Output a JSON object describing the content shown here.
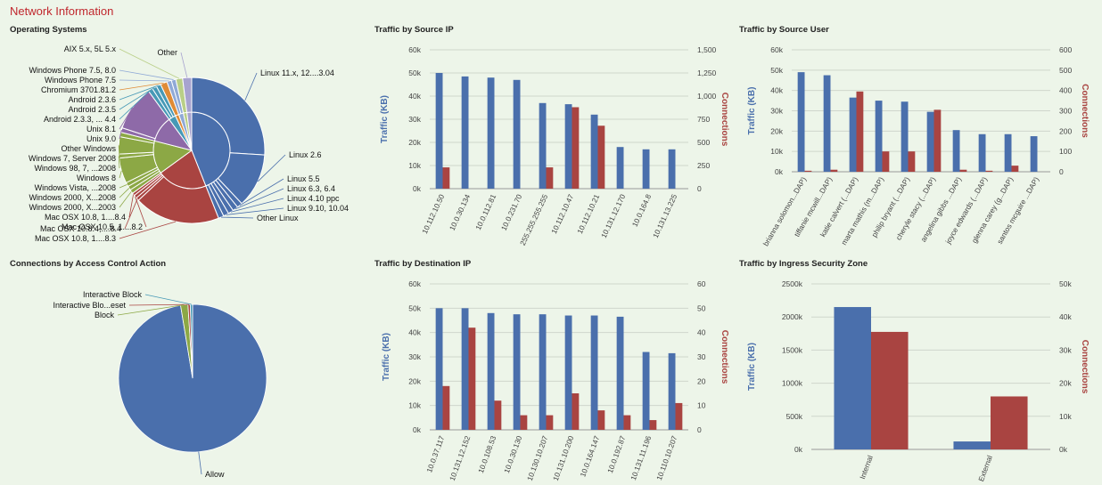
{
  "page": {
    "title": "Network Information"
  },
  "colors": {
    "blue": "#4a6fac",
    "red": "#a94441",
    "green": "#8ca845",
    "purple": "#8e6aa8",
    "teal": "#4799b6",
    "orange": "#df8b36",
    "lightblue": "#8fa9d6",
    "lightgreen": "#b9cf87",
    "grid": "#cfd6cc",
    "ylabel_left": "#4a6fac",
    "ylabel_right": "#a94441"
  },
  "chart_data": [
    {
      "id": "os",
      "type": "pie",
      "title": "Operating Systems",
      "inner_ring": [
        {
          "name": "Linux",
          "value": 44,
          "color": "#4a6fac"
        },
        {
          "name": "Mac OSX",
          "value": 21,
          "color": "#a94441"
        },
        {
          "name": "Windows",
          "value": 14,
          "color": "#8ca845"
        },
        {
          "name": "Unix",
          "value": 11,
          "color": "#8e6aa8"
        },
        {
          "name": "Android",
          "value": 3,
          "color": "#4799b6"
        },
        {
          "name": "Chromium",
          "value": 1.5,
          "color": "#df8b36"
        },
        {
          "name": "Windows Phone",
          "value": 2,
          "color": "#8fa9d6"
        },
        {
          "name": "AIX",
          "value": 1.5,
          "color": "#b9cf87"
        },
        {
          "name": "Other",
          "value": 2,
          "color": "#a7a3cf"
        }
      ],
      "outer_ring": [
        {
          "label": "Linux 11.x, 12....3.04",
          "value": 26,
          "color": "#4a6fac"
        },
        {
          "label": "Linux 2.6",
          "value": 12,
          "color": "#4a6fac"
        },
        {
          "label": "Linux 5.5",
          "value": 1.2,
          "color": "#4a6fac"
        },
        {
          "label": "Linux 6.3, 6.4",
          "value": 1.2,
          "color": "#4a6fac"
        },
        {
          "label": "Linux 4.10 ppc",
          "value": 1.2,
          "color": "#4a6fac"
        },
        {
          "label": "Linux 9.10, 10.04",
          "value": 1.2,
          "color": "#4a6fac"
        },
        {
          "label": "Other Linux",
          "value": 1.2,
          "color": "#4a6fac"
        },
        {
          "label": "Mac OSX 10.8, 1....8.3",
          "value": 19,
          "color": "#a94441"
        },
        {
          "label": "Mac OSX 10.8.4,....8.4",
          "value": 0.7,
          "color": "#a94441"
        },
        {
          "label": "Mac OSX 10.5, 1....8.2",
          "value": 0.7,
          "color": "#a94441"
        },
        {
          "label": "Mac OSX 10.8, 1....8.4",
          "value": 0.6,
          "color": "#a94441"
        },
        {
          "label": "Windows 2000, X...2003",
          "value": 0.9,
          "color": "#8ca845"
        },
        {
          "label": "Windows 2000, X...2008",
          "value": 0.9,
          "color": "#8ca845"
        },
        {
          "label": "Windows Vista, ...2008",
          "value": 0.9,
          "color": "#8ca845"
        },
        {
          "label": "Windows 8",
          "value": 5.6,
          "color": "#8ca845"
        },
        {
          "label": "Windows 98, 7, ...2008",
          "value": 0.9,
          "color": "#8ca845"
        },
        {
          "label": "Windows 7, Server 2008",
          "value": 3.8,
          "color": "#8ca845"
        },
        {
          "label": "Other Windows",
          "value": 1.0,
          "color": "#8ca845"
        },
        {
          "label": "Unix 9.0",
          "value": 1.0,
          "color": "#8e6aa8"
        },
        {
          "label": "Unix 8.1",
          "value": 10,
          "color": "#8e6aa8"
        },
        {
          "label": "Android 2.3.3, ... 4.4",
          "value": 1.0,
          "color": "#4799b6"
        },
        {
          "label": "Android 2.3.5",
          "value": 1.0,
          "color": "#4799b6"
        },
        {
          "label": "Android 2.3.6",
          "value": 1.0,
          "color": "#4799b6"
        },
        {
          "label": "Chromium 3701.81.2",
          "value": 1.5,
          "color": "#df8b36"
        },
        {
          "label": "Windows Phone 7.5",
          "value": 1.0,
          "color": "#8fa9d6"
        },
        {
          "label": "Windows Phone 7.5, 8.0",
          "value": 1.0,
          "color": "#8fa9d6"
        },
        {
          "label": "AIX 5.x, 5L 5.x",
          "value": 1.5,
          "color": "#b9cf87"
        },
        {
          "label": "Other",
          "value": 2,
          "color": "#a7a3cf"
        }
      ]
    },
    {
      "id": "src_ip",
      "type": "bar",
      "title": "Traffic by Source IP",
      "categories": [
        "10.112.10.50",
        "10.0.30.134",
        "10.0.112.81",
        "10.0.231.70",
        "255.255.255.255",
        "10.112.10.47",
        "10.112.10.21",
        "10.131.12.170",
        "10.0.164.8",
        "10.131.13.225"
      ],
      "series": [
        {
          "name": "Traffic (KB)",
          "axis": "left",
          "color": "#4a6fac",
          "values": [
            50000,
            48500,
            48000,
            47000,
            37000,
            36500,
            32000,
            18000,
            17000,
            17000
          ]
        },
        {
          "name": "Connections",
          "axis": "right",
          "color": "#a94441",
          "values": [
            230,
            0,
            0,
            0,
            230,
            880,
            680,
            0,
            0,
            0
          ]
        }
      ],
      "ylabel": "Traffic (KB)",
      "y2label": "Connections",
      "ylim": [
        0,
        60000
      ],
      "y2lim": [
        0,
        1500
      ],
      "yticks": [
        "0k",
        "10k",
        "20k",
        "30k",
        "40k",
        "50k",
        "60k"
      ],
      "y2ticks": [
        "0",
        "250",
        "500",
        "750",
        "1,000",
        "1,250",
        "1,500"
      ]
    },
    {
      "id": "src_user",
      "type": "bar",
      "title": "Traffic by Source User",
      "categories": [
        "brianna solomon...DAP)",
        "tiffanie mcwill...DAP)",
        "katie calvert (...DAP)",
        "marta mathis (m...DAP)",
        "philip bryant (...DAP)",
        "cheryle stacy (...DAP)",
        "angelina gibbs ...DAP)",
        "joyce edwards (...DAP)",
        "glenna carey (g...DAP)",
        "santos mcguire ...DAP)"
      ],
      "series": [
        {
          "name": "Traffic (KB)",
          "axis": "left",
          "color": "#4a6fac",
          "values": [
            49000,
            47500,
            36500,
            35000,
            34500,
            29500,
            20500,
            18500,
            18500,
            17500
          ]
        },
        {
          "name": "Connections",
          "axis": "right",
          "color": "#a94441",
          "values": [
            5,
            10,
            395,
            100,
            100,
            305,
            10,
            5,
            30,
            0
          ]
        }
      ],
      "ylabel": "Traffic (KB)",
      "y2label": "Connections",
      "ylim": [
        0,
        60000
      ],
      "y2lim": [
        0,
        600
      ],
      "yticks": [
        "0k",
        "10k",
        "20k",
        "30k",
        "40k",
        "50k",
        "60k"
      ],
      "y2ticks": [
        "0",
        "100",
        "200",
        "300",
        "400",
        "500",
        "600"
      ]
    },
    {
      "id": "acl",
      "type": "pie",
      "title": "Connections by Access Control Action",
      "slices": [
        {
          "label": "Allow",
          "value": 97.4,
          "color": "#4a6fac"
        },
        {
          "label": "Block",
          "value": 1.6,
          "color": "#8ca845"
        },
        {
          "label": "Interactive Blo...eset",
          "value": 0.5,
          "color": "#a94441"
        },
        {
          "label": "Interactive Block",
          "value": 0.5,
          "color": "#4799b6"
        }
      ]
    },
    {
      "id": "dst_ip",
      "type": "bar",
      "title": "Traffic by Destination IP",
      "categories": [
        "10.0.37.117",
        "10.131.12.152",
        "10.0.108.53",
        "10.0.30.130",
        "10.130.10.207",
        "10.131.10.200",
        "10.0.164.147",
        "10.0.192.87",
        "10.131.11.196",
        "10.110.10.207"
      ],
      "series": [
        {
          "name": "Traffic (KB)",
          "axis": "left",
          "color": "#4a6fac",
          "values": [
            50000,
            50000,
            48000,
            47500,
            47500,
            47000,
            47000,
            46500,
            32000,
            31500
          ]
        },
        {
          "name": "Connections",
          "axis": "right",
          "color": "#a94441",
          "values": [
            18,
            42,
            12,
            6,
            6,
            15,
            8,
            6,
            4,
            11
          ]
        }
      ],
      "ylabel": "Traffic (KB)",
      "y2label": "Connections",
      "ylim": [
        0,
        60000
      ],
      "y2lim": [
        0,
        60
      ],
      "yticks": [
        "0k",
        "10k",
        "20k",
        "30k",
        "40k",
        "50k",
        "60k"
      ],
      "y2ticks": [
        "0",
        "10",
        "20",
        "30",
        "40",
        "50",
        "60"
      ]
    },
    {
      "id": "zone",
      "type": "bar",
      "title": "Traffic by Ingress Security Zone",
      "categories": [
        "Internal",
        "External"
      ],
      "series": [
        {
          "name": "Traffic (KB)",
          "axis": "left",
          "color": "#4a6fac",
          "values": [
            2150000,
            120000
          ]
        },
        {
          "name": "Connections",
          "axis": "right",
          "color": "#a94441",
          "values": [
            35500,
            16000
          ]
        }
      ],
      "ylabel": "Traffic (KB)",
      "y2label": "Connections",
      "ylim": [
        0,
        2500000
      ],
      "y2lim": [
        0,
        50000
      ],
      "yticks": [
        "0k",
        "500k",
        "1000k",
        "1500k",
        "2000k",
        "2500k"
      ],
      "y2ticks": [
        "0k",
        "10k",
        "20k",
        "30k",
        "40k",
        "50k"
      ]
    }
  ]
}
